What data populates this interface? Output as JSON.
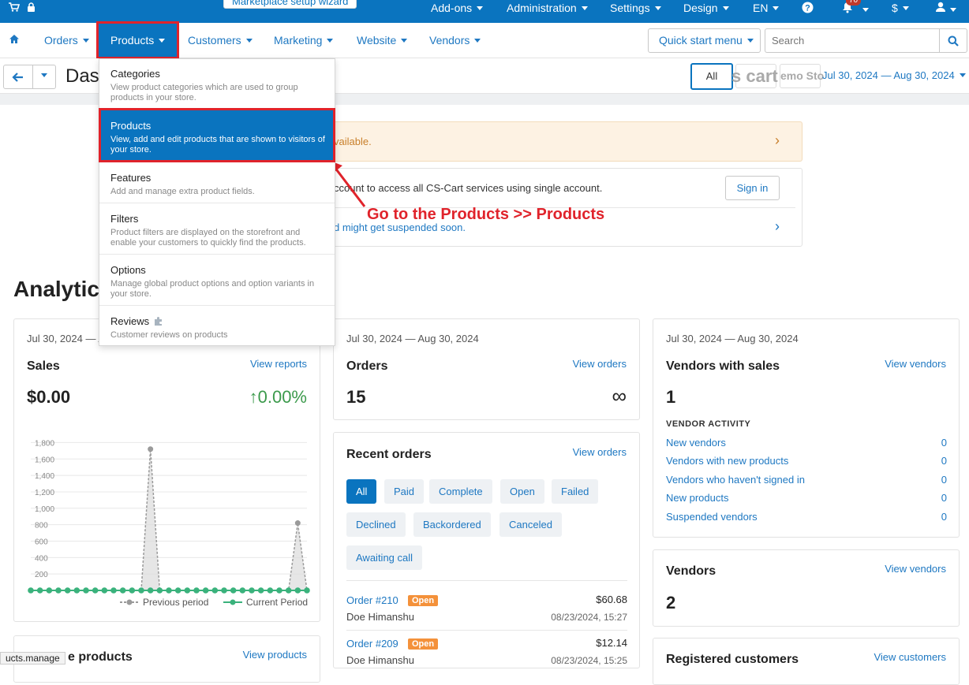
{
  "topbar": {
    "wizard_label": "Marketplace setup wizard",
    "menus": [
      "Add-ons",
      "Administration",
      "Settings",
      "Design",
      "EN",
      "$"
    ],
    "notification_count": "70"
  },
  "navbar": {
    "items": [
      "Orders",
      "Products",
      "Customers",
      "Marketing",
      "Website",
      "Vendors"
    ],
    "active": "Products",
    "quick_start": "Quick start menu",
    "search_placeholder": "Search"
  },
  "subbar": {
    "page_title": "Dashboard",
    "store_all": "All",
    "store_1": "s cart",
    "store_2": "emo Sto",
    "date_range": "Jul 30, 2024 — Aug 30, 2024"
  },
  "notices": {
    "warning_text": "vailable.",
    "account_text": "ccount to access all CS-Cart services using single account.",
    "sign_in": "Sign in",
    "suspend_text": "d might get suspended soon."
  },
  "annotation": "Go to the Products >> Products",
  "analytics_title": "Analytics",
  "sales_card": {
    "date": "Jul 30, 2024 — Aug 30, 2024",
    "title": "Sales",
    "link": "View reports",
    "value": "$0.00",
    "change": "↑0.00%"
  },
  "chart_data": {
    "type": "line",
    "title": "",
    "xlabel": "",
    "ylabel": "",
    "ylim": [
      0,
      1900
    ],
    "yticks": [
      200,
      400,
      600,
      800,
      "1,000",
      "1,200",
      "1,400",
      "1,600",
      "1,800"
    ],
    "x": [
      1,
      2,
      3,
      4,
      5,
      6,
      7,
      8,
      9,
      10,
      11,
      12,
      13,
      14,
      15,
      16,
      17,
      18,
      19,
      20,
      21,
      22,
      23,
      24,
      25,
      26,
      27,
      28,
      29,
      30,
      31
    ],
    "series": [
      {
        "name": "Previous period",
        "color": "#9a9a9a",
        "values": [
          0,
          0,
          0,
          0,
          0,
          0,
          0,
          0,
          0,
          0,
          0,
          0,
          0,
          1720,
          0,
          0,
          0,
          0,
          0,
          0,
          0,
          0,
          0,
          0,
          0,
          0,
          0,
          0,
          0,
          820,
          0
        ]
      },
      {
        "name": "Current Period",
        "color": "#3ab27c",
        "values": [
          0,
          0,
          0,
          0,
          0,
          0,
          0,
          0,
          0,
          0,
          0,
          0,
          0,
          0,
          0,
          0,
          0,
          0,
          0,
          0,
          0,
          0,
          0,
          0,
          0,
          0,
          0,
          0,
          0,
          0,
          0
        ]
      }
    ],
    "legend": [
      "Previous period",
      "Current Period"
    ]
  },
  "orders_card": {
    "date": "Jul 30, 2024 — Aug 30, 2024",
    "title": "Orders",
    "link": "View orders",
    "value": "15",
    "infinity": "∞"
  },
  "recent_orders": {
    "title": "Recent orders",
    "link": "View orders",
    "filters": [
      "All",
      "Paid",
      "Complete",
      "Open",
      "Failed",
      "Declined",
      "Backordered",
      "Canceled",
      "Awaiting call"
    ],
    "orders": [
      {
        "id": "Order #210",
        "status": "Open",
        "amount": "$60.68",
        "customer": "Doe Himanshu",
        "date": "08/23/2024, 15:27"
      },
      {
        "id": "Order #209",
        "status": "Open",
        "amount": "$12.14",
        "customer": "Doe Himanshu",
        "date": "08/23/2024, 15:25"
      }
    ]
  },
  "vendors_sales_card": {
    "date": "Jul 30, 2024 — Aug 30, 2024",
    "title": "Vendors with sales",
    "link": "View vendors",
    "value": "1",
    "activity_title": "VENDOR ACTIVITY",
    "activity": [
      {
        "label": "New vendors",
        "count": "0"
      },
      {
        "label": "Vendors with new products",
        "count": "0"
      },
      {
        "label": "Vendors who haven't signed in",
        "count": "0"
      },
      {
        "label": "New products",
        "count": "0"
      },
      {
        "label": "Suspended vendors",
        "count": "0"
      }
    ]
  },
  "vendors_card": {
    "title": "Vendors",
    "link": "View vendors",
    "value": "2"
  },
  "registered_card": {
    "title": "Registered customers",
    "link": "View customers"
  },
  "products_card": {
    "title": "e products",
    "link": "View products"
  },
  "dropdown": {
    "items": [
      {
        "title": "Categories",
        "desc": "View product categories which are used to group products in your store."
      },
      {
        "title": "Products",
        "desc": "View, add and edit products that are shown to visitors of your store."
      },
      {
        "title": "Features",
        "desc": "Add and manage extra product fields."
      },
      {
        "title": "Filters",
        "desc": "Product filters are displayed on the storefront and enable your customers to quickly find the products."
      },
      {
        "title": "Options",
        "desc": "Manage global product options and option variants in your store."
      },
      {
        "title": "Reviews",
        "desc": "Customer reviews on products"
      }
    ]
  },
  "statusbar": "ucts.manage",
  "colors": {
    "primary": "#0a74bf",
    "link": "#1e78c2",
    "highlight": "#e0232b",
    "badge": "#f4913a",
    "positive": "#3c9a4c"
  }
}
